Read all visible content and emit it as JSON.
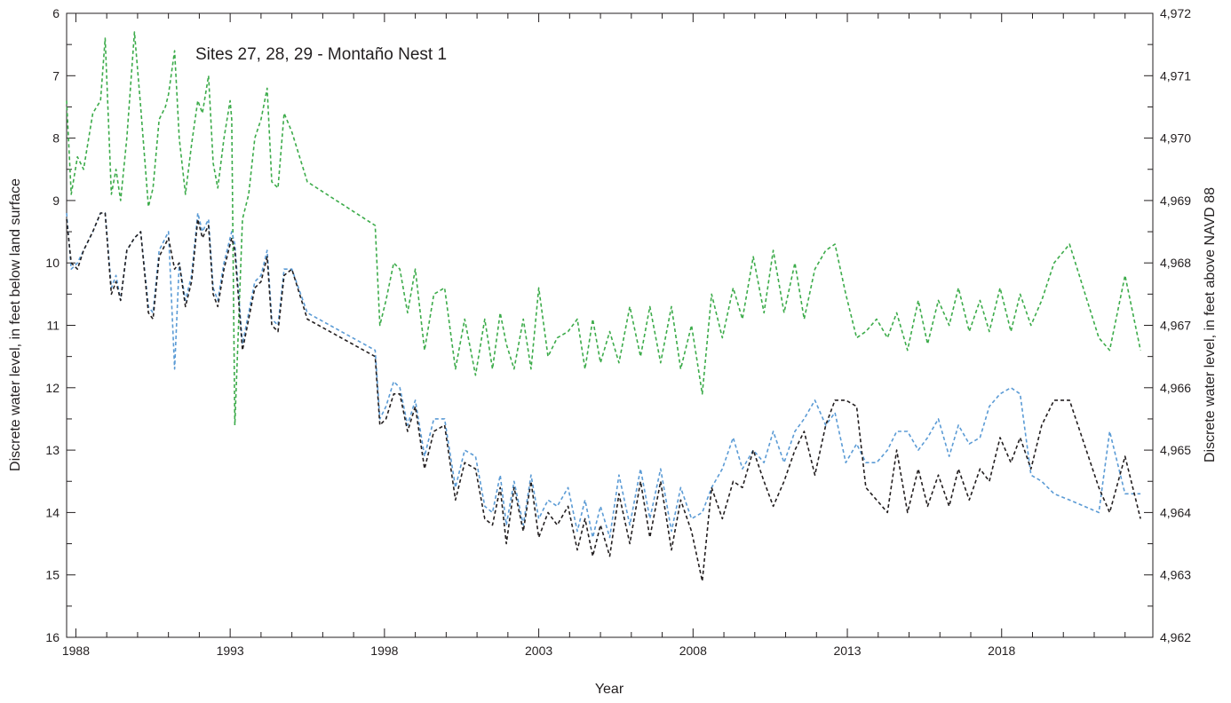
{
  "chart_data": {
    "type": "line",
    "title": "Sites 27, 28, 29 - Montaño Nest 1",
    "xlabel": "Year",
    "ylabel": "Discrete water level, in feet below land surface",
    "y2label": "Discrete water level, in feet above NAVD 88",
    "xlim": [
      1987.7,
      2022.9
    ],
    "ylim": [
      6,
      16
    ],
    "y_inverted": true,
    "y2lim": [
      4962,
      4972
    ],
    "x_ticks": [
      1988,
      1993,
      1998,
      2003,
      2008,
      2013,
      2018
    ],
    "x_tick_labels": [
      "1988",
      "1993",
      "1998",
      "2003",
      "2008",
      "2013",
      "2018"
    ],
    "y_ticks": [
      6,
      7,
      8,
      9,
      10,
      11,
      12,
      13,
      14,
      15,
      16
    ],
    "y_tick_labels": [
      "6",
      "7",
      "8",
      "9",
      "10",
      "11",
      "12",
      "13",
      "14",
      "15",
      "16"
    ],
    "y2_ticks": [
      4962,
      4963,
      4964,
      4965,
      4966,
      4967,
      4968,
      4969,
      4970,
      4971,
      4972
    ],
    "y2_tick_labels": [
      "4,962",
      "4,963",
      "4,964",
      "4,965",
      "4,966",
      "4,967",
      "4,968",
      "4,969",
      "4,970",
      "4,971",
      "4,972"
    ],
    "grid": false,
    "legend": "none",
    "line_style": "dashed",
    "series": [
      {
        "color": "#3cab4a",
        "x": [
          1987.7,
          1987.85,
          1988.05,
          1988.25,
          1988.55,
          1988.8,
          1988.95,
          1989.15,
          1989.3,
          1989.45,
          1989.65,
          1989.9,
          1990.1,
          1990.35,
          1990.5,
          1990.7,
          1990.9,
          1991.0,
          1991.2,
          1991.35,
          1991.55,
          1991.75,
          1991.95,
          1992.1,
          1992.3,
          1992.45,
          1992.6,
          1992.8,
          1993.0,
          1993.05,
          1993.15,
          1993.4,
          1993.6,
          1993.8,
          1994.0,
          1994.2,
          1994.35,
          1994.55,
          1994.75,
          1995.0,
          1995.5,
          1997.7,
          1997.85,
          1998.05,
          1998.3,
          1998.5,
          1998.75,
          1999.0,
          1999.3,
          1999.6,
          1999.95,
          2000.3,
          2000.6,
          2000.95,
          2001.25,
          2001.5,
          2001.75,
          2001.95,
          2002.2,
          2002.5,
          2002.75,
          2003.0,
          2003.3,
          2003.6,
          2003.95,
          2004.25,
          2004.5,
          2004.75,
          2005.0,
          2005.3,
          2005.6,
          2005.95,
          2006.3,
          2006.6,
          2006.95,
          2007.3,
          2007.6,
          2007.95,
          2008.3,
          2008.6,
          2008.95,
          2009.3,
          2009.6,
          2009.95,
          2010.3,
          2010.6,
          2010.95,
          2011.3,
          2011.6,
          2011.95,
          2012.3,
          2012.6,
          2012.95,
          2013.3,
          2013.6,
          2013.95,
          2014.3,
          2014.6,
          2014.95,
          2015.3,
          2015.6,
          2015.95,
          2016.3,
          2016.6,
          2016.95,
          2017.3,
          2017.6,
          2017.95,
          2018.3,
          2018.6,
          2018.95,
          2019.3,
          2019.7,
          2020.2,
          2021.15,
          2021.5,
          2022.0,
          2022.5
        ],
        "y": [
          7.4,
          8.9,
          8.3,
          8.5,
          7.6,
          7.4,
          6.4,
          8.9,
          8.5,
          9.0,
          8.0,
          6.3,
          7.5,
          9.1,
          8.8,
          7.7,
          7.5,
          7.3,
          6.6,
          8.0,
          8.9,
          8.1,
          7.4,
          7.6,
          7.0,
          8.4,
          8.8,
          8.0,
          7.4,
          7.7,
          12.6,
          9.3,
          8.9,
          8.0,
          7.7,
          7.2,
          8.7,
          8.8,
          7.6,
          7.9,
          8.7,
          9.4,
          11.0,
          10.6,
          10.0,
          10.1,
          10.8,
          10.1,
          11.4,
          10.5,
          10.4,
          11.7,
          10.9,
          11.8,
          10.9,
          11.7,
          10.8,
          11.3,
          11.7,
          10.9,
          11.7,
          10.4,
          11.5,
          11.2,
          11.1,
          10.9,
          11.7,
          10.9,
          11.6,
          11.1,
          11.6,
          10.7,
          11.5,
          10.7,
          11.6,
          10.7,
          11.7,
          11.0,
          12.1,
          10.5,
          11.2,
          10.4,
          10.9,
          9.9,
          10.8,
          9.8,
          10.8,
          10.0,
          10.9,
          10.1,
          9.8,
          9.7,
          10.5,
          11.2,
          11.1,
          10.9,
          11.2,
          10.8,
          11.4,
          10.6,
          11.3,
          10.6,
          11.0,
          10.4,
          11.1,
          10.6,
          11.1,
          10.4,
          11.1,
          10.5,
          11.0,
          10.6,
          10.0,
          9.7,
          11.2,
          11.4,
          10.2,
          11.4
        ]
      },
      {
        "color": "#5b9bd5",
        "x": [
          1987.7,
          1987.85,
          1988.05,
          1988.25,
          1988.55,
          1988.8,
          1988.95,
          1989.15,
          1989.3,
          1989.45,
          1989.65,
          1989.9,
          1990.1,
          1990.35,
          1990.5,
          1990.7,
          1990.9,
          1991.0,
          1991.2,
          1991.35,
          1991.55,
          1991.75,
          1991.95,
          1992.1,
          1992.3,
          1992.45,
          1992.6,
          1992.8,
          1993.0,
          1993.05,
          1993.15,
          1993.4,
          1993.6,
          1993.8,
          1994.0,
          1994.2,
          1994.35,
          1994.55,
          1994.75,
          1995.0,
          1995.5,
          1997.7,
          1997.85,
          1998.05,
          1998.3,
          1998.5,
          1998.75,
          1999.0,
          1999.3,
          1999.6,
          1999.95,
          2000.3,
          2000.6,
          2000.95,
          2001.25,
          2001.5,
          2001.75,
          2001.95,
          2002.2,
          2002.5,
          2002.75,
          2003.0,
          2003.3,
          2003.6,
          2003.95,
          2004.25,
          2004.5,
          2004.75,
          2005.0,
          2005.3,
          2005.6,
          2005.95,
          2006.3,
          2006.6,
          2006.95,
          2007.3,
          2007.6,
          2007.95,
          2008.3,
          2008.6,
          2008.95,
          2009.3,
          2009.6,
          2009.95,
          2010.3,
          2010.6,
          2010.95,
          2011.3,
          2011.6,
          2011.95,
          2012.3,
          2012.6,
          2012.95,
          2013.3,
          2013.6,
          2013.95,
          2014.3,
          2014.6,
          2014.95,
          2015.3,
          2015.6,
          2015.95,
          2016.3,
          2016.6,
          2016.95,
          2017.3,
          2017.6,
          2017.95,
          2018.3,
          2018.6,
          2018.95,
          2019.3,
          2019.7,
          2020.2,
          2021.15,
          2021.5,
          2022.0,
          2022.5
        ],
        "y": [
          9.2,
          10.1,
          10.0,
          9.8,
          9.5,
          9.2,
          9.2,
          10.4,
          10.2,
          10.6,
          9.8,
          9.6,
          9.5,
          10.7,
          10.8,
          9.8,
          9.6,
          9.5,
          11.7,
          10.0,
          10.6,
          10.2,
          9.2,
          9.5,
          9.3,
          10.4,
          10.6,
          10.0,
          9.6,
          9.5,
          9.7,
          11.3,
          10.8,
          10.3,
          10.2,
          9.8,
          10.9,
          11.0,
          10.1,
          10.1,
          10.8,
          11.4,
          12.5,
          12.3,
          11.9,
          12.0,
          12.6,
          12.2,
          13.1,
          12.5,
          12.5,
          13.6,
          13.0,
          13.1,
          13.9,
          14.0,
          13.4,
          14.2,
          13.5,
          14.2,
          13.4,
          14.1,
          13.8,
          13.9,
          13.6,
          14.3,
          13.8,
          14.4,
          13.9,
          14.4,
          13.4,
          14.2,
          13.3,
          14.1,
          13.3,
          14.3,
          13.6,
          14.1,
          14.0,
          13.6,
          13.3,
          12.8,
          13.3,
          13.0,
          13.2,
          12.7,
          13.2,
          12.7,
          12.5,
          12.2,
          12.6,
          12.4,
          13.2,
          12.9,
          13.2,
          13.2,
          13.0,
          12.7,
          12.7,
          13.0,
          12.8,
          12.5,
          13.1,
          12.6,
          12.9,
          12.8,
          12.3,
          12.1,
          12.0,
          12.1,
          13.4,
          13.5,
          13.7,
          13.8,
          14.0,
          12.7,
          13.7,
          13.7
        ]
      },
      {
        "color": "#231f20",
        "x": [
          1987.7,
          1987.85,
          1988.05,
          1988.25,
          1988.55,
          1988.8,
          1988.95,
          1989.15,
          1989.3,
          1989.45,
          1989.65,
          1989.9,
          1990.1,
          1990.35,
          1990.5,
          1990.7,
          1990.9,
          1991.0,
          1991.2,
          1991.35,
          1991.55,
          1991.75,
          1991.95,
          1992.1,
          1992.3,
          1992.45,
          1992.6,
          1992.8,
          1993.0,
          1993.05,
          1993.15,
          1993.4,
          1993.6,
          1993.8,
          1994.0,
          1994.2,
          1994.35,
          1994.55,
          1994.75,
          1995.0,
          1995.5,
          1997.7,
          1997.85,
          1998.05,
          1998.3,
          1998.5,
          1998.75,
          1999.0,
          1999.3,
          1999.6,
          1999.95,
          2000.3,
          2000.6,
          2000.95,
          2001.25,
          2001.5,
          2001.75,
          2001.95,
          2002.2,
          2002.5,
          2002.75,
          2003.0,
          2003.3,
          2003.6,
          2003.95,
          2004.25,
          2004.5,
          2004.75,
          2005.0,
          2005.3,
          2005.6,
          2005.95,
          2006.3,
          2006.6,
          2006.95,
          2007.3,
          2007.6,
          2007.95,
          2008.3,
          2008.6,
          2008.95,
          2009.3,
          2009.6,
          2009.95,
          2010.3,
          2010.6,
          2010.95,
          2011.3,
          2011.6,
          2011.95,
          2012.3,
          2012.6,
          2012.95,
          2013.3,
          2013.6,
          2013.95,
          2014.3,
          2014.6,
          2014.95,
          2015.3,
          2015.6,
          2015.95,
          2016.3,
          2016.6,
          2016.95,
          2017.3,
          2017.6,
          2017.95,
          2018.3,
          2018.6,
          2018.95,
          2019.3,
          2019.7,
          2020.2,
          2021.15,
          2021.5,
          2022.0,
          2022.5
        ],
        "y": [
          9.3,
          10.0,
          10.1,
          9.8,
          9.5,
          9.2,
          9.2,
          10.5,
          10.3,
          10.6,
          9.8,
          9.6,
          9.5,
          10.8,
          10.9,
          9.9,
          9.7,
          9.6,
          10.1,
          10.0,
          10.7,
          10.3,
          9.3,
          9.6,
          9.4,
          10.5,
          10.7,
          10.1,
          9.7,
          9.6,
          9.8,
          11.4,
          10.9,
          10.4,
          10.3,
          9.9,
          11.0,
          11.1,
          10.2,
          10.1,
          10.9,
          11.5,
          12.6,
          12.5,
          12.1,
          12.1,
          12.7,
          12.3,
          13.3,
          12.7,
          12.6,
          13.8,
          13.2,
          13.3,
          14.1,
          14.2,
          13.6,
          14.5,
          13.6,
          14.3,
          13.5,
          14.4,
          14.0,
          14.2,
          13.9,
          14.6,
          14.1,
          14.7,
          14.2,
          14.7,
          13.7,
          14.5,
          13.5,
          14.4,
          13.5,
          14.6,
          13.8,
          14.3,
          15.1,
          13.6,
          14.1,
          13.5,
          13.6,
          13.0,
          13.5,
          13.9,
          13.5,
          13.0,
          12.7,
          13.4,
          12.6,
          12.2,
          12.2,
          12.3,
          13.6,
          13.8,
          14.0,
          13.0,
          14.0,
          13.3,
          13.9,
          13.4,
          13.9,
          13.3,
          13.8,
          13.3,
          13.5,
          12.8,
          13.2,
          12.8,
          13.3,
          12.6,
          12.2,
          12.2,
          13.6,
          14.0,
          13.1,
          14.1
        ]
      }
    ]
  }
}
